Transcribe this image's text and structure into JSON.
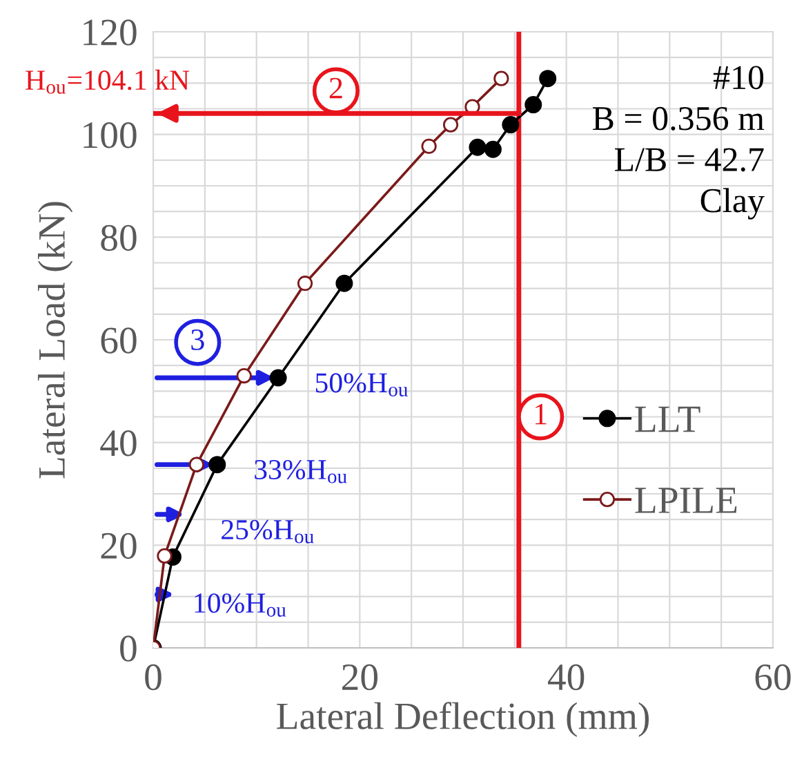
{
  "chart_data": {
    "type": "line",
    "xlabel": "Lateral Deflection (mm)",
    "ylabel": "Lateral Load (kN)",
    "xlim": [
      0,
      60
    ],
    "xticks": [
      0,
      20,
      40,
      60
    ],
    "ylim": [
      0,
      120
    ],
    "yticks": [
      0,
      20,
      40,
      60,
      80,
      100,
      120
    ],
    "grid": true,
    "legend": "right",
    "marker": "circle",
    "series": [
      {
        "name": "LLT",
        "color": "#000000",
        "x": [
          0,
          1.9,
          6.2,
          12.1,
          18.5,
          31.4,
          32.9,
          34.6,
          36.8,
          38.2
        ],
        "values": [
          0,
          17.7,
          35.7,
          52.6,
          71.0,
          97.5,
          97.1,
          101.9,
          105.8,
          110.9
        ]
      },
      {
        "name": "LPILE",
        "color": "#7b1a1a",
        "x": [
          0,
          1.1,
          4.2,
          8.8,
          14.7,
          26.7,
          28.8,
          30.9,
          33.7
        ],
        "values": [
          0,
          17.9,
          35.7,
          53.0,
          71.0,
          97.7,
          101.9,
          105.4,
          110.9
        ]
      }
    ],
    "ref_lines": [
      {
        "axis": "x",
        "value": 35.4,
        "color": "#e8141c"
      },
      {
        "axis": "y",
        "value": 104.1,
        "color": "#e8141c"
      }
    ],
    "annotations": [
      "H$_{ou}$=104.1 kN",
      {
        "text": "50%H$_{ou}$",
        "x": 12.1,
        "y": 52.6
      },
      {
        "text": "33%H$_{ou}$",
        "x": 6.2,
        "y": 35.7
      },
      "25%H$_{ou}$",
      "10%H$_{ou}$",
      "1",
      "2",
      "3",
      "#10",
      "B = 0.356 m",
      "L/B = 42.7",
      "Clay"
    ]
  }
}
